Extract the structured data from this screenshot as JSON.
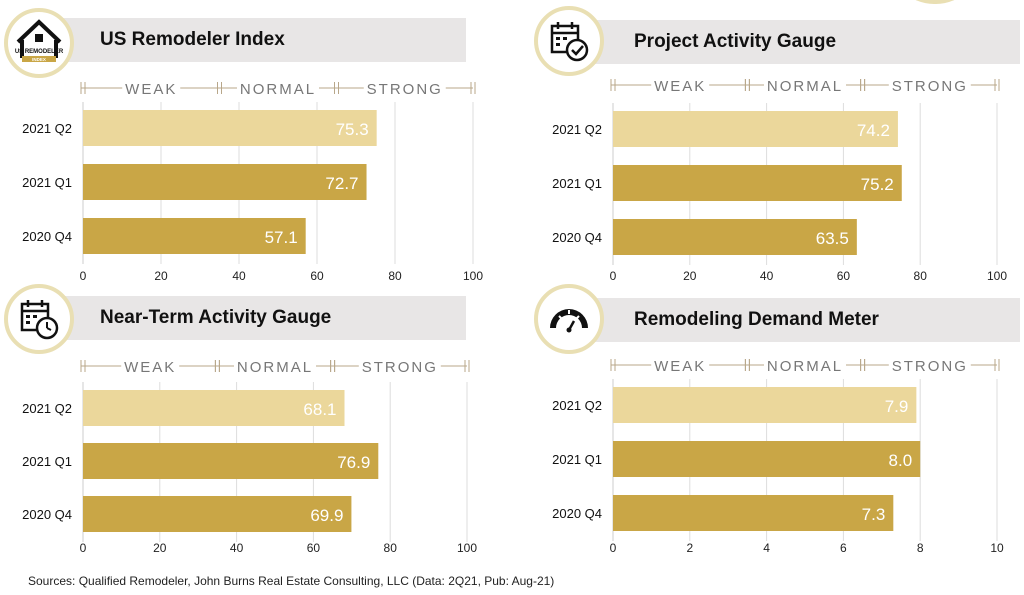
{
  "colors": {
    "light_bar": "#ebd79b",
    "dark_bar": "#c9a646",
    "scale_line": "#b8a78a",
    "scale_text": "#777777",
    "title_bg": "#e8e6e6",
    "icon_ring": "#e9dfb3"
  },
  "scale_labels": [
    "WEAK",
    "NORMAL",
    "STRONG"
  ],
  "charts": [
    {
      "title": "US Remodeler Index",
      "icon": "house-logo-icon",
      "logo_text": [
        "US REMODELER",
        "INDEX"
      ],
      "chart_data": {
        "type": "bar",
        "orientation": "horizontal",
        "categories": [
          "2021 Q2",
          "2021 Q1",
          "2020 Q4"
        ],
        "values": [
          75.3,
          72.7,
          57.1
        ],
        "value_labels": [
          "75.3",
          "72.7",
          "57.1"
        ],
        "xlim": [
          0,
          100
        ],
        "ticks": [
          "0",
          "20",
          "40",
          "60",
          "80",
          "100"
        ],
        "tick_values": [
          0,
          20,
          40,
          60,
          80,
          100
        ],
        "scale_bands": [
          [
            "WEAK",
            0,
            35
          ],
          [
            "NORMAL",
            35,
            65
          ],
          [
            "STRONG",
            65,
            100
          ]
        ],
        "grid": true
      }
    },
    {
      "title": "Project Activity Gauge",
      "icon": "calendar-check-icon",
      "chart_data": {
        "type": "bar",
        "orientation": "horizontal",
        "categories": [
          "2021 Q2",
          "2021 Q1",
          "2020 Q4"
        ],
        "values": [
          74.2,
          75.2,
          63.5
        ],
        "value_labels": [
          "74.2",
          "75.2",
          "63.5"
        ],
        "xlim": [
          0,
          100
        ],
        "ticks": [
          "0",
          "20",
          "40",
          "60",
          "80",
          "100"
        ],
        "tick_values": [
          0,
          20,
          40,
          60,
          80,
          100
        ],
        "scale_bands": [
          [
            "WEAK",
            0,
            35
          ],
          [
            "NORMAL",
            35,
            65
          ],
          [
            "STRONG",
            65,
            100
          ]
        ],
        "grid": true
      }
    },
    {
      "title": "Near-Term Activity Gauge",
      "icon": "calendar-clock-icon",
      "chart_data": {
        "type": "bar",
        "orientation": "horizontal",
        "categories": [
          "2021 Q2",
          "2021 Q1",
          "2020 Q4"
        ],
        "values": [
          68.1,
          76.9,
          69.9
        ],
        "value_labels": [
          "68.1",
          "76.9",
          "69.9"
        ],
        "xlim": [
          0,
          100
        ],
        "ticks": [
          "0",
          "20",
          "40",
          "60",
          "80",
          "100"
        ],
        "tick_values": [
          0,
          20,
          40,
          60,
          80,
          100
        ],
        "scale_bands": [
          [
            "WEAK",
            0,
            35
          ],
          [
            "NORMAL",
            35,
            65
          ],
          [
            "STRONG",
            65,
            100
          ]
        ],
        "grid": true
      }
    },
    {
      "title": "Remodeling Demand Meter",
      "icon": "speedometer-icon",
      "chart_data": {
        "type": "bar",
        "orientation": "horizontal",
        "categories": [
          "2021 Q2",
          "2021 Q1",
          "2020 Q4"
        ],
        "values": [
          7.9,
          8.0,
          7.3
        ],
        "value_labels": [
          "7.9",
          "8.0",
          "7.3"
        ],
        "xlim": [
          0,
          10
        ],
        "ticks": [
          "0",
          "2",
          "4",
          "6",
          "8",
          "10"
        ],
        "tick_values": [
          0,
          2,
          4,
          6,
          8,
          10
        ],
        "scale_bands": [
          [
            "WEAK",
            0,
            3.5
          ],
          [
            "NORMAL",
            3.5,
            6.5
          ],
          [
            "STRONG",
            6.5,
            10
          ]
        ],
        "grid": true
      }
    }
  ],
  "footer": "Sources: Qualified Remodeler, John Burns Real Estate Consulting, LLC (Data: 2Q21, Pub: Aug-21)"
}
